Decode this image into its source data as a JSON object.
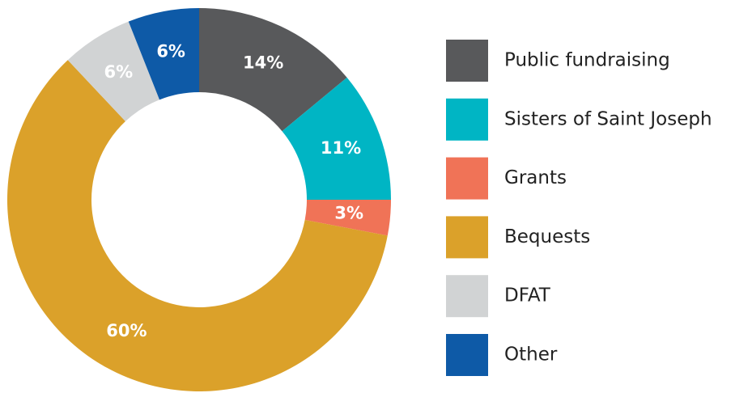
{
  "chart_data": {
    "type": "donut",
    "categories": [
      "Public fundraising",
      "Sisters of Saint Joseph",
      "Grants",
      "Bequests",
      "DFAT",
      "Other"
    ],
    "values": [
      14,
      11,
      3,
      60,
      6,
      6
    ],
    "value_labels": [
      "14%",
      "11%",
      "3%",
      "60%",
      "6%",
      "6%"
    ],
    "colors": [
      "#58595b",
      "#00b5c4",
      "#f07357",
      "#dba12a",
      "#d1d3d4",
      "#0e5aa7"
    ],
    "legend": "right"
  }
}
